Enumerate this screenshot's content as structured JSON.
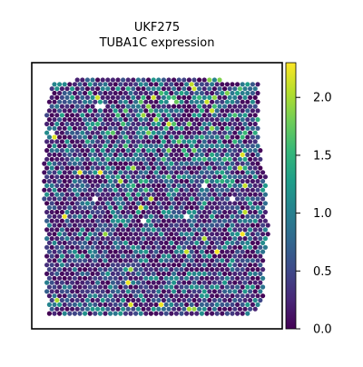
{
  "chart_data": {
    "type": "heatmap",
    "subtype": "spatial-spot-scatter",
    "title_line1": "UKF275",
    "title_line2": "TUBA1C expression",
    "xlabel": "",
    "ylabel": "",
    "axes_ticks_visible": false,
    "grid": false,
    "colormap": "viridis",
    "colorbar": {
      "location": "right",
      "range": [
        0.0,
        2.3
      ],
      "ticks": [
        0.0,
        0.5,
        1.0,
        1.5,
        2.0
      ],
      "tick_labels": [
        "0.0",
        "0.5",
        "1.0",
        "1.5",
        "2.0"
      ]
    },
    "value_summary": {
      "min": 0.0,
      "max": 2.3,
      "typical_range": [
        0.0,
        1.2
      ],
      "high_values_region": "upper-center"
    },
    "missing_spot_color": "#ffffff"
  }
}
